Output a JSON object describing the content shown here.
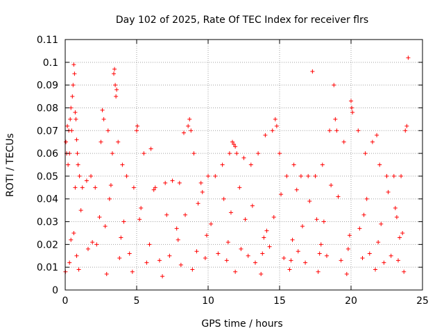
{
  "chart_data": {
    "type": "scatter",
    "title": "Day 102 of 2025, Rate Of TEC Index for receiver flrs",
    "xlabel": "GPS time / hours",
    "ylabel": "ROTI / TECUs",
    "xlim": [
      0,
      25
    ],
    "ylim": [
      0,
      0.11
    ],
    "xticks": [
      0,
      5,
      10,
      15,
      20,
      25
    ],
    "xtick_labels": [
      "0",
      "5",
      "10",
      "15",
      "20",
      "25"
    ],
    "yticks": [
      0,
      0.01,
      0.02,
      0.03,
      0.04,
      0.05,
      0.06,
      0.07,
      0.08,
      0.09,
      0.1,
      0.11
    ],
    "ytick_labels": [
      "0",
      "0.01",
      "0.02",
      "0.03",
      "0.04",
      "0.05",
      "0.06",
      "0.07",
      "0.08",
      "0.09",
      "0.1",
      "0.11"
    ],
    "grid": true,
    "marker": "+",
    "color": "#ff0000",
    "series": [
      {
        "x": [
          0.05,
          0.1,
          0.15,
          0.2,
          0.25,
          0.3,
          0.35,
          0.4,
          0.45,
          0.5,
          0.55,
          0.6,
          0.65,
          0.7,
          0.75,
          0.8,
          0.85,
          0.9,
          1.0,
          1.2,
          1.5,
          1.8,
          2.1,
          2.5,
          2.6,
          2.7,
          3.0,
          3.3,
          3.4,
          3.45,
          3.5,
          3.55,
          3.6,
          3.7,
          4.0,
          4.3,
          4.8,
          5.0,
          5.05,
          5.5,
          6.0,
          6.3,
          7.0,
          7.5,
          8.0,
          8.3,
          8.6,
          8.7,
          8.8,
          9.0,
          9.5,
          10.0,
          10.5,
          11.0,
          11.5,
          11.7,
          11.8,
          11.9,
          12.0,
          12.5,
          13.0,
          13.5,
          14.0,
          14.5,
          14.7,
          14.8,
          15.0,
          15.5,
          16.0,
          16.5,
          17.0,
          17.3,
          17.5,
          18.0,
          18.5,
          18.8,
          18.9,
          19.0,
          19.5,
          20.0,
          20.05,
          20.1,
          20.5,
          21.0,
          21.5,
          21.8,
          22.0,
          22.5,
          23.0,
          23.5,
          23.8,
          23.9,
          24.0,
          0.3,
          0.8,
          1.6,
          2.2,
          3.8,
          4.5,
          5.7,
          6.6,
          7.3,
          8.1,
          9.2,
          9.8,
          10.7,
          11.3,
          12.3,
          12.8,
          13.3,
          13.8,
          14.3,
          15.3,
          15.8,
          16.3,
          16.8,
          17.8,
          18.3,
          19.3,
          19.8,
          20.8,
          21.3,
          22.3,
          22.8,
          23.3,
          0.6,
          2.8,
          4.1,
          7.8,
          10.2,
          12.6,
          14.1,
          16.6,
          18.1,
          20.6,
          22.1,
          23.6,
          1.1,
          3.1,
          5.3,
          7.1,
          9.3,
          11.1,
          13.1,
          15.1,
          17.1,
          19.1,
          21.1,
          23.1,
          0.02,
          0.95,
          2.9,
          4.7,
          6.8,
          8.9,
          11.9,
          13.7,
          15.7,
          17.7,
          19.7,
          21.7,
          23.7,
          0.4,
          1.9,
          3.9,
          5.9,
          7.9,
          9.9,
          11.4,
          13.9,
          15.9,
          17.9,
          19.9,
          21.9,
          23.4,
          0.7,
          3.2,
          6.2,
          9.6,
          12.2,
          16.2,
          18.6,
          22.6,
          2.4,
          5.2,
          8.4,
          11.6,
          14.6,
          17.6,
          20.9,
          23.2
        ],
        "y": [
          0.065,
          0.06,
          0.072,
          0.055,
          0.07,
          0.06,
          0.075,
          0.08,
          0.07,
          0.085,
          0.09,
          0.099,
          0.095,
          0.078,
          0.075,
          0.066,
          0.06,
          0.055,
          0.05,
          0.045,
          0.048,
          0.05,
          0.045,
          0.065,
          0.079,
          0.075,
          0.07,
          0.06,
          0.095,
          0.097,
          0.09,
          0.085,
          0.088,
          0.065,
          0.055,
          0.05,
          0.045,
          0.07,
          0.072,
          0.06,
          0.062,
          0.045,
          0.047,
          0.048,
          0.047,
          0.069,
          0.072,
          0.075,
          0.07,
          0.06,
          0.047,
          0.05,
          0.05,
          0.055,
          0.06,
          0.065,
          0.064,
          0.063,
          0.06,
          0.058,
          0.055,
          0.06,
          0.068,
          0.07,
          0.075,
          0.072,
          0.06,
          0.05,
          0.055,
          0.05,
          0.05,
          0.096,
          0.05,
          0.055,
          0.07,
          0.09,
          0.075,
          0.07,
          0.065,
          0.083,
          0.08,
          0.078,
          0.07,
          0.06,
          0.065,
          0.068,
          0.055,
          0.05,
          0.05,
          0.05,
          0.07,
          0.072,
          0.102,
          0.012,
          0.015,
          0.018,
          0.02,
          0.014,
          0.016,
          0.012,
          0.013,
          0.015,
          0.011,
          0.017,
          0.014,
          0.016,
          0.013,
          0.018,
          0.015,
          0.012,
          0.016,
          0.019,
          0.014,
          0.013,
          0.017,
          0.012,
          0.016,
          0.015,
          0.013,
          0.018,
          0.014,
          0.016,
          0.012,
          0.015,
          0.013,
          0.025,
          0.028,
          0.03,
          0.027,
          0.029,
          0.031,
          0.026,
          0.028,
          0.03,
          0.027,
          0.029,
          0.025,
          0.035,
          0.04,
          0.036,
          0.033,
          0.038,
          0.04,
          0.037,
          0.042,
          0.039,
          0.041,
          0.04,
          0.036,
          0.008,
          0.009,
          0.007,
          0.008,
          0.006,
          0.009,
          0.008,
          0.007,
          0.009,
          0.008,
          0.007,
          0.009,
          0.008,
          0.022,
          0.021,
          0.023,
          0.02,
          0.022,
          0.024,
          0.021,
          0.023,
          0.022,
          0.02,
          0.024,
          0.021,
          0.023,
          0.045,
          0.046,
          0.044,
          0.043,
          0.045,
          0.044,
          0.046,
          0.043,
          0.032,
          0.031,
          0.033,
          0.034,
          0.032,
          0.031,
          0.033,
          0.032
        ]
      }
    ]
  }
}
